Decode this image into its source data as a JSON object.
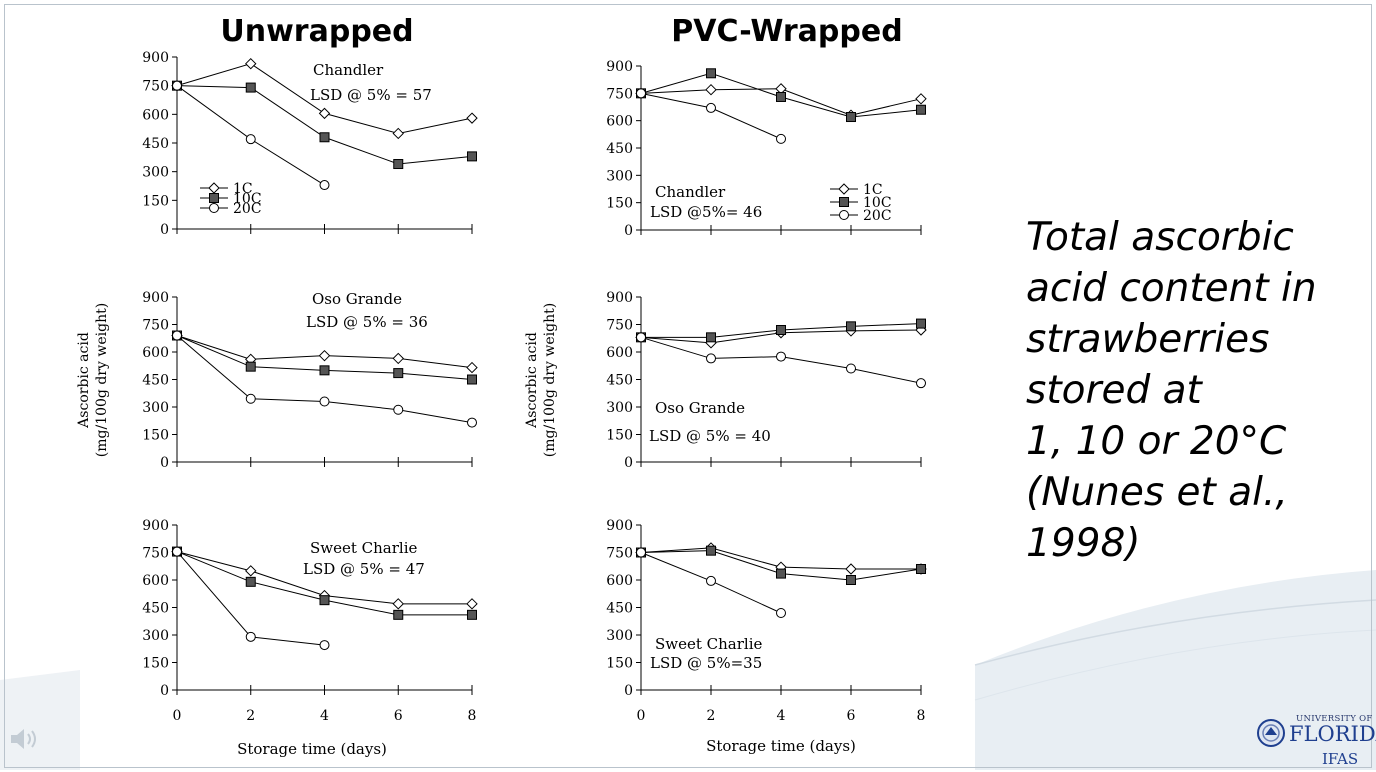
{
  "column_titles": {
    "left": "Unwrapped",
    "right": "PVC-Wrapped"
  },
  "caption_lines": [
    "Total ascorbic",
    "acid content in",
    "strawberries",
    "stored at",
    "1, 10 or 20°C",
    "(Nunes et al.,",
    "1998)"
  ],
  "logo": {
    "university": "UNIVERSITY OF",
    "name": "FLORIDA",
    "unit": "IFAS"
  },
  "colors": {
    "series_line": "#000000",
    "axis": "#000000",
    "background": "#ffffff",
    "logo_blue": "#1f3f8f"
  },
  "icons": {
    "audio": "speaker-icon",
    "seal": "university-seal-icon"
  },
  "chart_data": [
    {
      "id": "unwrapped-chandler",
      "type": "line",
      "annotation": [
        "Chandler",
        "LSD @ 5% = 57"
      ],
      "legend": [
        "1C",
        "10C",
        "20C"
      ],
      "x_ticks": [
        "0",
        "2",
        "4",
        "6",
        "8"
      ],
      "y_ticks": [
        "900",
        "750",
        "600",
        "450",
        "300",
        "150",
        "0"
      ],
      "ylim": [
        0,
        900
      ],
      "xlim": [
        0,
        8
      ],
      "xlabel": "",
      "ylabel": "",
      "series": [
        {
          "name": "1C",
          "marker": "open-diamond",
          "x": [
            0,
            2,
            4,
            6,
            8
          ],
          "y": [
            750,
            865,
            605,
            500,
            580
          ]
        },
        {
          "name": "10C",
          "marker": "filled-square",
          "x": [
            0,
            2,
            4,
            6,
            8
          ],
          "y": [
            750,
            740,
            480,
            340,
            380
          ]
        },
        {
          "name": "20C",
          "marker": "open-circle",
          "x": [
            0,
            2,
            4
          ],
          "y": [
            750,
            470,
            230
          ]
        }
      ]
    },
    {
      "id": "pvc-chandler",
      "type": "line",
      "annotation": [
        "Chandler",
        "LSD @5%= 46"
      ],
      "legend": [
        "1C",
        "10C",
        "20C"
      ],
      "x_ticks": [
        "0",
        "2",
        "4",
        "6",
        "8"
      ],
      "y_ticks": [
        "900",
        "750",
        "600",
        "450",
        "300",
        "150",
        "0"
      ],
      "ylim": [
        0,
        900
      ],
      "xlim": [
        0,
        8
      ],
      "xlabel": "",
      "ylabel": "",
      "series": [
        {
          "name": "1C",
          "marker": "open-diamond",
          "x": [
            0,
            2,
            4,
            6,
            8
          ],
          "y": [
            750,
            770,
            775,
            630,
            720
          ]
        },
        {
          "name": "10C",
          "marker": "filled-square",
          "x": [
            0,
            2,
            4,
            6,
            8
          ],
          "y": [
            750,
            860,
            730,
            620,
            660
          ]
        },
        {
          "name": "20C",
          "marker": "open-circle",
          "x": [
            0,
            2,
            4
          ],
          "y": [
            750,
            670,
            500
          ]
        }
      ]
    },
    {
      "id": "unwrapped-oso-grande",
      "type": "line",
      "annotation": [
        "Oso Grande",
        "LSD @ 5% = 36"
      ],
      "legend": [],
      "x_ticks": [
        "0",
        "2",
        "4",
        "6",
        "8"
      ],
      "y_ticks": [
        "900",
        "750",
        "600",
        "450",
        "300",
        "150",
        "0"
      ],
      "ylim": [
        0,
        900
      ],
      "xlim": [
        0,
        8
      ],
      "xlabel": "",
      "ylabel": [
        "Ascorbic acid",
        "(mg/100g dry weight)"
      ],
      "series": [
        {
          "name": "1C",
          "marker": "open-diamond",
          "x": [
            0,
            2,
            4,
            6,
            8
          ],
          "y": [
            690,
            560,
            580,
            565,
            515
          ]
        },
        {
          "name": "10C",
          "marker": "filled-square",
          "x": [
            0,
            2,
            4,
            6,
            8
          ],
          "y": [
            690,
            520,
            500,
            485,
            450
          ]
        },
        {
          "name": "20C",
          "marker": "open-circle",
          "x": [
            0,
            2,
            4,
            6,
            8
          ],
          "y": [
            690,
            345,
            330,
            285,
            215
          ]
        }
      ]
    },
    {
      "id": "pvc-oso-grande",
      "type": "line",
      "annotation": [
        "Oso Grande",
        "LSD @ 5% = 40"
      ],
      "legend": [],
      "x_ticks": [
        "0",
        "2",
        "4",
        "6",
        "8"
      ],
      "y_ticks": [
        "900",
        "750",
        "600",
        "450",
        "300",
        "150",
        "0"
      ],
      "ylim": [
        0,
        900
      ],
      "xlim": [
        0,
        8
      ],
      "xlabel": "",
      "ylabel": [
        "Ascorbic acid",
        "(mg/100g dry weight)"
      ],
      "series": [
        {
          "name": "1C",
          "marker": "open-diamond",
          "x": [
            0,
            2,
            4,
            6,
            8
          ],
          "y": [
            680,
            650,
            705,
            715,
            720
          ]
        },
        {
          "name": "10C",
          "marker": "filled-square",
          "x": [
            0,
            2,
            4,
            6,
            8
          ],
          "y": [
            680,
            680,
            720,
            740,
            755
          ]
        },
        {
          "name": "20C",
          "marker": "open-circle",
          "x": [
            0,
            2,
            4,
            6,
            8
          ],
          "y": [
            680,
            565,
            575,
            510,
            430
          ]
        }
      ]
    },
    {
      "id": "unwrapped-sweet-charlie",
      "type": "line",
      "annotation": [
        "Sweet Charlie",
        "LSD @ 5% = 47"
      ],
      "legend": [],
      "x_ticks": [
        "0",
        "2",
        "4",
        "6",
        "8"
      ],
      "y_ticks": [
        "900",
        "750",
        "600",
        "450",
        "300",
        "150",
        "0"
      ],
      "ylim": [
        0,
        900
      ],
      "xlim": [
        0,
        8
      ],
      "xlabel": "Storage time (days)",
      "ylabel": "",
      "series": [
        {
          "name": "1C",
          "marker": "open-diamond",
          "x": [
            0,
            2,
            4,
            6,
            8
          ],
          "y": [
            755,
            650,
            515,
            470,
            470
          ]
        },
        {
          "name": "10C",
          "marker": "filled-square",
          "x": [
            0,
            2,
            4,
            6,
            8
          ],
          "y": [
            755,
            590,
            490,
            410,
            410
          ]
        },
        {
          "name": "20C",
          "marker": "open-circle",
          "x": [
            0,
            2,
            4
          ],
          "y": [
            755,
            290,
            245
          ]
        }
      ]
    },
    {
      "id": "pvc-sweet-charlie",
      "type": "line",
      "annotation": [
        "Sweet Charlie",
        "LSD @ 5%=35"
      ],
      "legend": [],
      "x_ticks": [
        "0",
        "2",
        "4",
        "6",
        "8"
      ],
      "y_ticks": [
        "900",
        "750",
        "600",
        "450",
        "300",
        "150",
        "0"
      ],
      "ylim": [
        0,
        900
      ],
      "xlim": [
        0,
        8
      ],
      "xlabel": "Storage time (days)",
      "ylabel": "",
      "series": [
        {
          "name": "1C",
          "marker": "open-diamond",
          "x": [
            0,
            2,
            4,
            6,
            8
          ],
          "y": [
            750,
            775,
            670,
            660,
            660
          ]
        },
        {
          "name": "10C",
          "marker": "filled-square",
          "x": [
            0,
            2,
            4,
            6,
            8
          ],
          "y": [
            750,
            760,
            635,
            600,
            660
          ]
        },
        {
          "name": "20C",
          "marker": "open-circle",
          "x": [
            0,
            2,
            4
          ],
          "y": [
            750,
            595,
            420
          ]
        }
      ]
    }
  ]
}
